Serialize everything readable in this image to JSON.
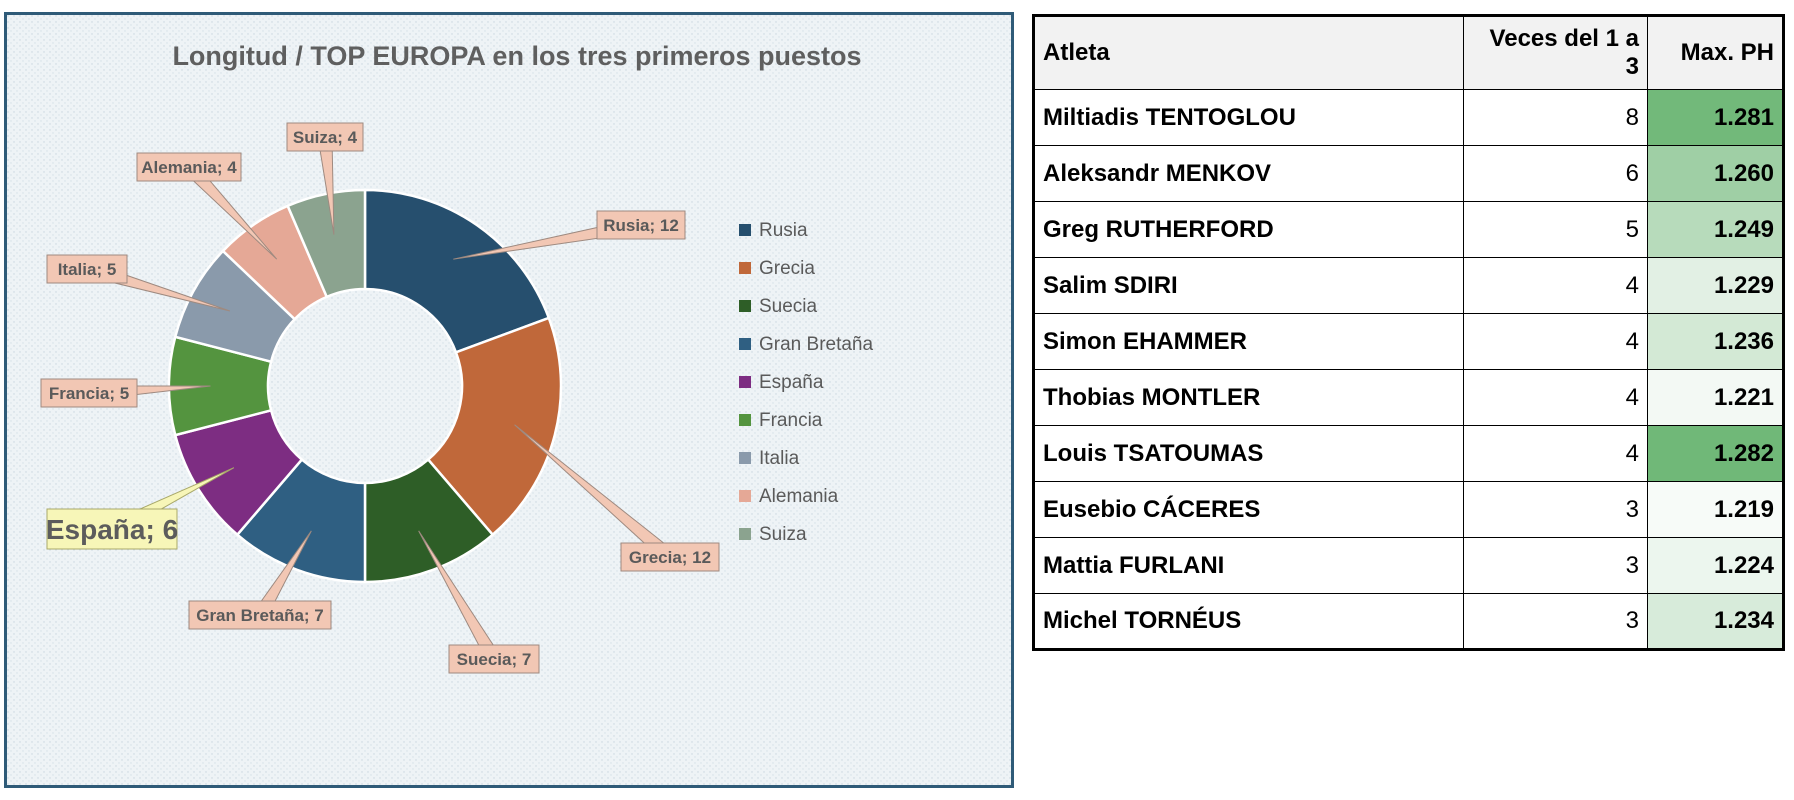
{
  "chart_data": {
    "type": "pie",
    "title": "Longitud  / TOP   EUROPA en los tres primeros puestos",
    "categories": [
      "Rusia",
      "Grecia",
      "Suecia",
      "Gran Bretaña",
      "España",
      "Francia",
      "Italia",
      "Alemania",
      "Suiza"
    ],
    "values": [
      12,
      12,
      7,
      7,
      6,
      5,
      5,
      4,
      4
    ],
    "colors": [
      "#264f6e",
      "#c0683a",
      "#2e5e27",
      "#2f5f82",
      "#7d2d82",
      "#54943f",
      "#8a9aab",
      "#e5a896",
      "#8ba38f"
    ],
    "data_labels": [
      "Rusia; 12",
      "Grecia; 12",
      "Suecia; 7",
      "Gran Bretaña; 7",
      "España; 6",
      "Francia; 5",
      "Italia; 5",
      "Alemania; 4",
      "Suiza; 4"
    ],
    "legend_position": "right",
    "donut": true
  },
  "table": {
    "headers": [
      "Atleta",
      "Veces del 1 a 3",
      "Max. PH"
    ],
    "rows": [
      {
        "name": "Miltiadis TENTOGLOU",
        "count": "8",
        "max": "1.281"
      },
      {
        "name": "Aleksandr MENKOV",
        "count": "6",
        "max": "1.260"
      },
      {
        "name": "Greg RUTHERFORD",
        "count": "5",
        "max": "1.249"
      },
      {
        "name": "Salim SDIRI",
        "count": "4",
        "max": "1.229"
      },
      {
        "name": "Simon EHAMMER",
        "count": "4",
        "max": "1.236"
      },
      {
        "name": "Thobias MONTLER",
        "count": "4",
        "max": "1.221"
      },
      {
        "name": "Louis TSATOUMAS",
        "count": "4",
        "max": "1.282"
      },
      {
        "name": "Eusebio CÁCERES",
        "count": "3",
        "max": "1.219"
      },
      {
        "name": "Mattia FURLANI",
        "count": "3",
        "max": "1.224"
      },
      {
        "name": "Michel TORNÉUS",
        "count": "3",
        "max": "1.234"
      }
    ]
  }
}
